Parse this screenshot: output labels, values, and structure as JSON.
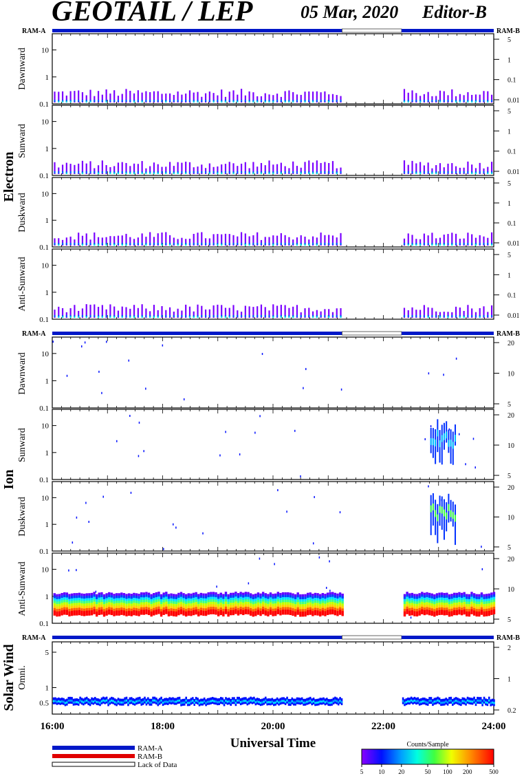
{
  "header": {
    "instrument": "GEOTAIL / LEP",
    "date": "05 Mar, 2020",
    "editor": "Editor-B"
  },
  "colors": {
    "ram_a": "#0018c8",
    "ram_b": "#e00000",
    "lack_of_data": "#ffffff"
  },
  "groups": [
    {
      "label": "Electron"
    },
    {
      "label": "Ion"
    },
    {
      "label": "Solar Wind"
    }
  ],
  "ram_labels": {
    "left": "RAM-A",
    "right": "RAM-B"
  },
  "chart_data": {
    "type": "heatmap",
    "xlabel": "Universal Time",
    "xlim_hours": [
      16,
      24
    ],
    "xticks": [
      "16:00",
      "18:00",
      "20:00",
      "22:00",
      "24:00"
    ],
    "data_gaps_hours": [
      [
        21.25,
        22.33
      ]
    ],
    "ram_status_bars": [
      {
        "group": "Electron",
        "segments": [
          {
            "from": 16,
            "to": 21.25,
            "mode": "RAM-A"
          },
          {
            "from": 21.25,
            "to": 22.33,
            "mode": "Lack of Data"
          },
          {
            "from": 22.33,
            "to": 24,
            "mode": "RAM-A"
          }
        ]
      },
      {
        "group": "Ion",
        "segments": [
          {
            "from": 16,
            "to": 21.25,
            "mode": "RAM-A"
          },
          {
            "from": 21.25,
            "to": 22.33,
            "mode": "Lack of Data"
          },
          {
            "from": 22.33,
            "to": 24,
            "mode": "RAM-A"
          }
        ]
      },
      {
        "group": "Solar Wind",
        "segments": [
          {
            "from": 16,
            "to": 21.25,
            "mode": "RAM-A"
          },
          {
            "from": 21.25,
            "to": 22.33,
            "mode": "Lack of Data"
          },
          {
            "from": 22.33,
            "to": 24,
            "mode": "RAM-A"
          }
        ]
      }
    ],
    "panels": [
      {
        "group": "Electron",
        "direction": "Dawnward",
        "yticks_left": [
          "10",
          "1",
          "0.1"
        ],
        "yticks_right": [
          "5",
          "1",
          "0.1",
          "0.01"
        ],
        "ylim": [
          0.1,
          40
        ],
        "yscale": "log",
        "activity": "low"
      },
      {
        "group": "Electron",
        "direction": "Sunward",
        "yticks_left": [
          "10",
          "1",
          "0.1"
        ],
        "yticks_right": [
          "5",
          "1",
          "0.1",
          "0.01"
        ],
        "ylim": [
          0.1,
          40
        ],
        "yscale": "log",
        "activity": "low"
      },
      {
        "group": "Electron",
        "direction": "Duskward",
        "yticks_left": [
          "10",
          "1",
          "0.1"
        ],
        "yticks_right": [
          "5",
          "1",
          "0.1",
          "0.01"
        ],
        "ylim": [
          0.1,
          40
        ],
        "yscale": "log",
        "activity": "low"
      },
      {
        "group": "Electron",
        "direction": "Anti-Sunward",
        "yticks_left": [
          "10",
          "1",
          "0.1"
        ],
        "yticks_right": [
          "5",
          "1",
          "0.1",
          "0.01"
        ],
        "ylim": [
          0.1,
          40
        ],
        "yscale": "log",
        "activity": "low"
      },
      {
        "group": "Ion",
        "direction": "Dawnward",
        "yticks_left": [
          "10",
          "1",
          "0.1"
        ],
        "yticks_right": [
          "20",
          "10",
          "5"
        ],
        "ylim": [
          0.1,
          40
        ],
        "yscale": "log",
        "activity": "sparse"
      },
      {
        "group": "Ion",
        "direction": "Sunward",
        "yticks_left": [
          "10",
          "1",
          "0.1"
        ],
        "yticks_right": [
          "20",
          "10",
          "5"
        ],
        "ylim": [
          0.1,
          40
        ],
        "yscale": "log",
        "activity": "sparse"
      },
      {
        "group": "Ion",
        "direction": "Duskward",
        "yticks_left": [
          "10",
          "1",
          "0.1"
        ],
        "yticks_right": [
          "20",
          "10",
          "5"
        ],
        "ylim": [
          0.1,
          40
        ],
        "yscale": "log",
        "activity": "sparse"
      },
      {
        "group": "Ion",
        "direction": "Anti-Sunward",
        "yticks_left": [
          "10",
          "1",
          "0.1"
        ],
        "yticks_right": [
          "20",
          "10",
          "5"
        ],
        "ylim": [
          0.1,
          40
        ],
        "yscale": "log",
        "activity": "band"
      },
      {
        "group": "Solar Wind",
        "direction": "Omni.",
        "yticks_left": [
          "5",
          "1",
          "0.5"
        ],
        "yticks_right": [
          "2",
          "1",
          "0.2"
        ],
        "ylim": [
          0.3,
          8
        ],
        "yscale": "log",
        "activity": "sw"
      }
    ],
    "legend": [
      {
        "label": "RAM-A"
      },
      {
        "label": "RAM-B"
      },
      {
        "label": "Lack of Data"
      }
    ],
    "colorbar": {
      "title": "Counts/Sample",
      "scale": "log",
      "range": [
        5,
        500
      ],
      "ticks": [
        "5",
        "10",
        "20",
        "50",
        "100",
        "200",
        "500"
      ]
    }
  }
}
